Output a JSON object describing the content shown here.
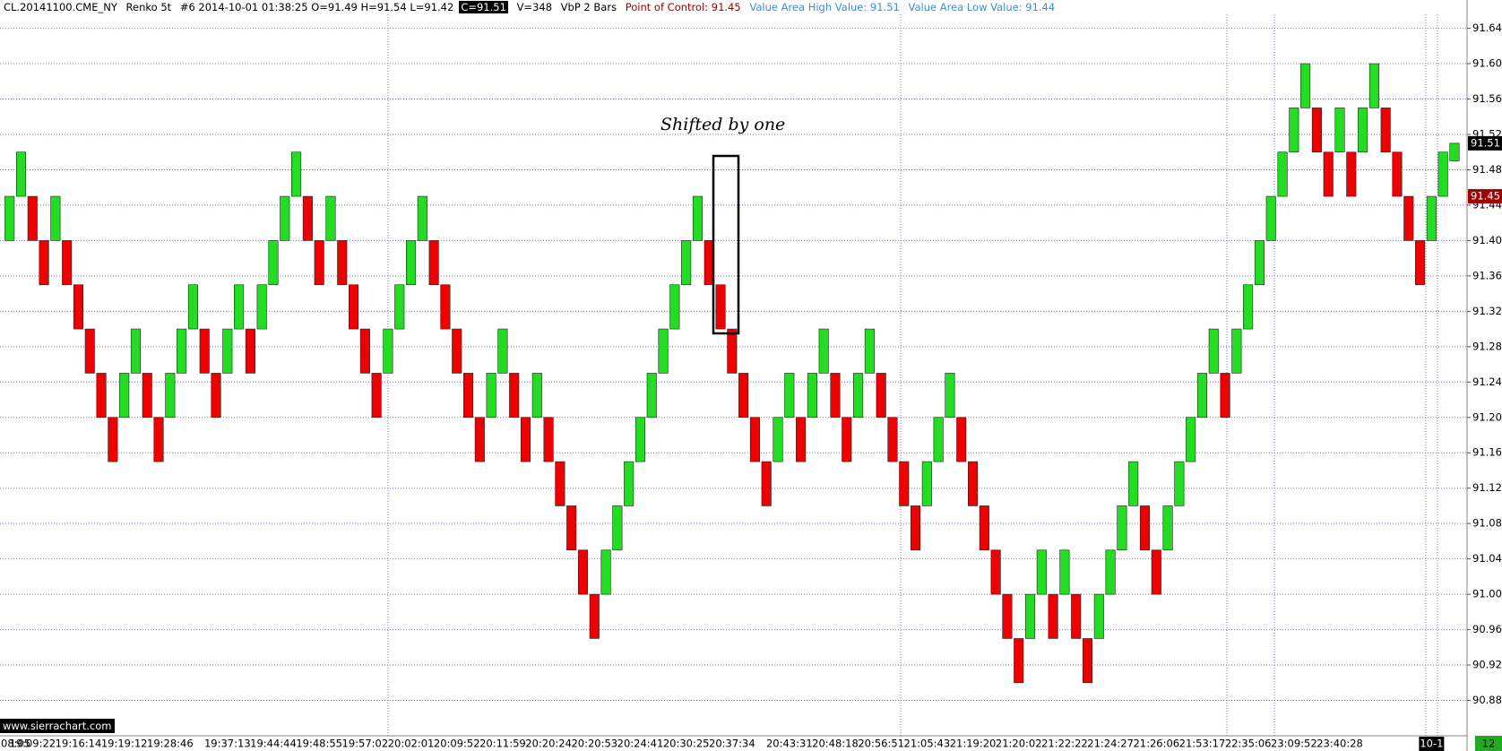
{
  "header": {
    "symbol": "CL.20141100.CME_NY",
    "bar_type": "Renko 5t",
    "bar_info": "#6 2014-10-01 01:38:25 O=91.49 H=91.54 L=91.42",
    "close_info": "C=91.51",
    "volume_info": "V=348",
    "study": "VbP 2 Bars",
    "poc_info": "Point of Control: 91.45",
    "vah_info": "Value Area High Value: 91.51",
    "val_info": "Value Area Low Value: 91.44"
  },
  "annotation": "Shifted by one",
  "watermark": "www.sierrachart.com",
  "bar_countdown": "12",
  "chart_data": {
    "type": "renko",
    "up_color": "#22dd22",
    "down_color": "#ee0000",
    "grid": true,
    "ylim": [
      90.84,
      91.672
    ],
    "yticks": [
      90.88,
      90.92,
      90.96,
      {
        "value": 91.0,
        "label": "91.00"
      },
      91.04,
      91.08,
      91.12,
      91.16,
      {
        "value": 91.2,
        "label": "91.20"
      },
      91.24,
      91.28,
      91.32,
      91.36,
      {
        "value": 91.4,
        "label": "91.40"
      },
      91.44,
      91.48,
      91.52,
      91.56,
      {
        "value": 91.6,
        "label": "91.60"
      },
      91.64
    ],
    "last_price": 91.51,
    "poc_price": 91.45,
    "categories": [
      "08:05",
      null,
      "19:09:22",
      null,
      null,
      null,
      "19:16:14",
      null,
      null,
      null,
      "19:19:12",
      null,
      null,
      null,
      "19:28:46",
      null,
      null,
      null,
      null,
      "19:37:13",
      null,
      null,
      null,
      "19:44:44",
      null,
      null,
      null,
      "19:48:55",
      null,
      null,
      null,
      "19:57:02",
      null,
      null,
      null,
      "20:02:01",
      null,
      null,
      null,
      "20:09:52",
      null,
      null,
      null,
      "20:11:59",
      null,
      null,
      null,
      "20:20:24",
      null,
      null,
      null,
      "20:20:53",
      null,
      null,
      null,
      "20:24:41",
      null,
      null,
      null,
      "20:30:25",
      null,
      null,
      null,
      "20:37:34",
      null,
      null,
      null,
      null,
      "20:43:31",
      null,
      null,
      null,
      "20:48:18",
      null,
      null,
      null,
      "20:56:51",
      null,
      null,
      null,
      "21:05:43",
      null,
      null,
      null,
      "21:19:20",
      null,
      null,
      null,
      "21:20:02",
      null,
      null,
      null,
      "21:22:22",
      null,
      null,
      null,
      "21:24:27",
      null,
      null,
      null,
      "21:26:06",
      null,
      null,
      null,
      "21:53:17",
      null,
      null,
      null,
      "22:35:06",
      null,
      null,
      null,
      "23:09:52",
      null,
      null,
      null,
      "23:40:28",
      null,
      null,
      null,
      null,
      null,
      null,
      null,
      "10-1",
      null,
      null
    ],
    "open": [
      91.4,
      91.45,
      91.45,
      91.4,
      91.4,
      91.4,
      91.35,
      91.3,
      91.25,
      91.2,
      91.2,
      91.25,
      91.25,
      91.2,
      91.2,
      91.25,
      91.3,
      91.3,
      91.25,
      91.25,
      91.3,
      91.3,
      91.3,
      91.35,
      91.4,
      91.45,
      91.45,
      91.4,
      91.4,
      91.4,
      91.35,
      91.3,
      91.25,
      91.25,
      91.3,
      91.35,
      91.4,
      91.4,
      91.35,
      91.3,
      91.25,
      91.2,
      91.2,
      91.25,
      91.25,
      91.2,
      91.2,
      91.2,
      91.15,
      91.1,
      91.05,
      91.0,
      91.0,
      91.05,
      91.1,
      91.15,
      91.2,
      91.25,
      91.3,
      91.35,
      91.4,
      91.4,
      91.35,
      91.3,
      91.25,
      91.2,
      91.15,
      91.15,
      91.2,
      91.2,
      91.2,
      91.25,
      91.25,
      91.2,
      91.2,
      91.25,
      91.25,
      91.2,
      91.15,
      91.1,
      91.1,
      91.15,
      91.2,
      91.2,
      91.15,
      91.1,
      91.05,
      91.0,
      90.95,
      90.95,
      91.0,
      91.0,
      91.0,
      91.0,
      90.95,
      90.95,
      91.0,
      91.05,
      91.1,
      91.1,
      91.05,
      91.05,
      91.1,
      91.15,
      91.2,
      91.25,
      91.25,
      91.25,
      91.3,
      91.35,
      91.4,
      91.45,
      91.5,
      91.55,
      91.55,
      91.5,
      91.5,
      91.5,
      91.5,
      91.55,
      91.55,
      91.5,
      91.45,
      91.4,
      91.4,
      91.45,
      91.49
    ],
    "close": [
      91.45,
      91.5,
      91.4,
      91.35,
      91.45,
      91.35,
      91.3,
      91.25,
      91.2,
      91.15,
      91.25,
      91.3,
      91.2,
      91.15,
      91.25,
      91.3,
      91.35,
      91.25,
      91.2,
      91.3,
      91.35,
      91.25,
      91.35,
      91.4,
      91.45,
      91.5,
      91.4,
      91.35,
      91.45,
      91.35,
      91.3,
      91.25,
      91.2,
      91.3,
      91.35,
      91.4,
      91.45,
      91.35,
      91.3,
      91.25,
      91.2,
      91.15,
      91.25,
      91.3,
      91.2,
      91.15,
      91.25,
      91.15,
      91.1,
      91.05,
      91.0,
      90.95,
      91.05,
      91.1,
      91.15,
      91.2,
      91.25,
      91.3,
      91.35,
      91.4,
      91.45,
      91.35,
      91.3,
      91.25,
      91.2,
      91.15,
      91.1,
      91.2,
      91.25,
      91.15,
      91.25,
      91.3,
      91.2,
      91.15,
      91.25,
      91.3,
      91.2,
      91.15,
      91.1,
      91.05,
      91.15,
      91.2,
      91.25,
      91.15,
      91.1,
      91.05,
      91.0,
      90.95,
      90.9,
      91.0,
      91.05,
      90.95,
      91.05,
      90.95,
      90.9,
      91.0,
      91.05,
      91.1,
      91.15,
      91.05,
      91.0,
      91.1,
      91.15,
      91.2,
      91.25,
      91.3,
      91.2,
      91.3,
      91.35,
      91.4,
      91.45,
      91.5,
      91.55,
      91.6,
      91.5,
      91.45,
      91.55,
      91.45,
      91.55,
      91.6,
      91.5,
      91.45,
      91.4,
      91.35,
      91.45,
      91.5,
      91.51
    ]
  }
}
